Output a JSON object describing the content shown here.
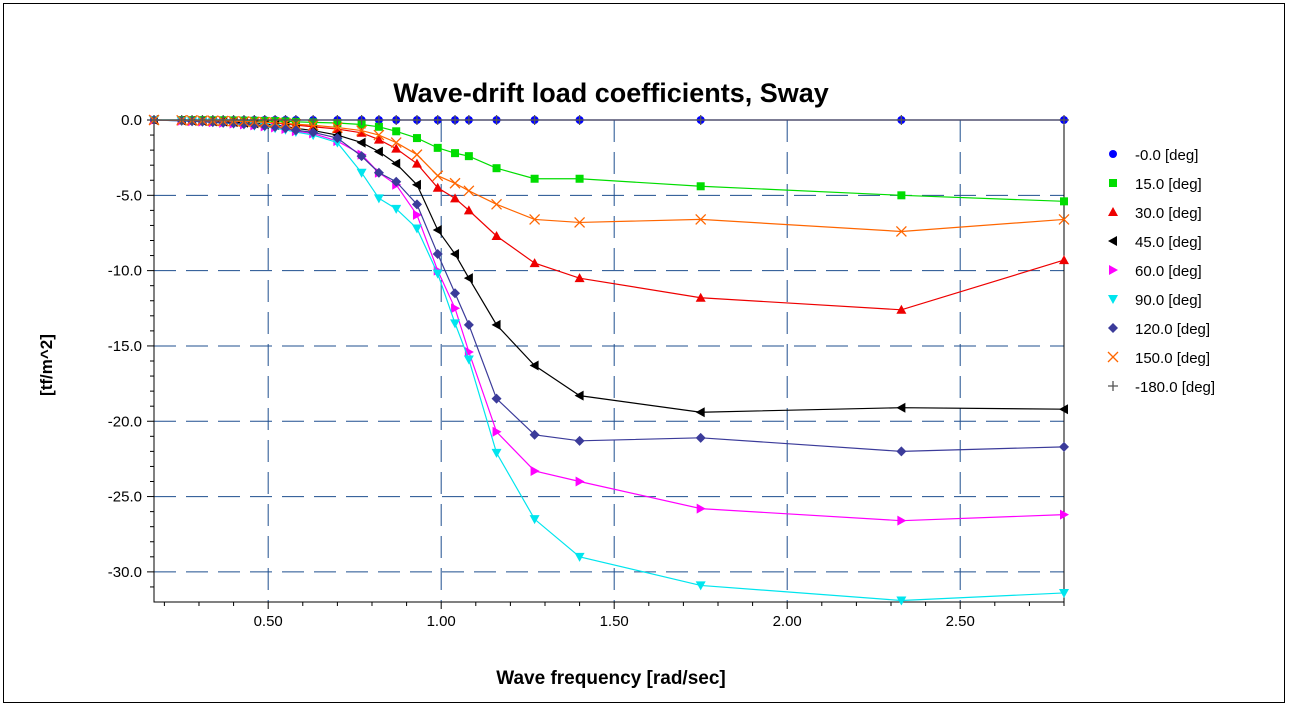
{
  "chart_data": {
    "type": "line",
    "title": "Wave-drift load coefficients, Sway",
    "xlabel": "Wave frequency [rad/sec]",
    "ylabel": "[tf/m^2]",
    "xlim": [
      0.17,
      2.8
    ],
    "ylim": [
      -32.0,
      0.0
    ],
    "xticks": [
      0.5,
      1.0,
      1.5,
      2.0,
      2.5
    ],
    "xtick_labels": [
      "0.50",
      "1.00",
      "1.50",
      "2.00",
      "2.50"
    ],
    "yticks": [
      0.0,
      -5.0,
      -10.0,
      -15.0,
      -20.0,
      -25.0,
      -30.0
    ],
    "ytick_labels": [
      "0.0",
      "-5.0",
      "-10.0",
      "-15.0",
      "-20.0",
      "-25.0",
      "-30.0"
    ],
    "grid": true,
    "legend_position": "right",
    "x": [
      0.17,
      0.25,
      0.28,
      0.31,
      0.34,
      0.37,
      0.4,
      0.43,
      0.46,
      0.49,
      0.52,
      0.55,
      0.58,
      0.63,
      0.7,
      0.77,
      0.82,
      0.87,
      0.93,
      0.99,
      1.04,
      1.08,
      1.16,
      1.27,
      1.4,
      1.75,
      2.33,
      2.8
    ],
    "series": [
      {
        "name": "-0.0 [deg]",
        "color": "#0000ff",
        "marker": "circle",
        "values": [
          0,
          0,
          0,
          0,
          0,
          0,
          0,
          0,
          0,
          0,
          0,
          0,
          0,
          0,
          0,
          0,
          0,
          0,
          0,
          0,
          0,
          0,
          0,
          0,
          0,
          0,
          0,
          0
        ]
      },
      {
        "name": "15.0 [deg]",
        "color": "#00dd00",
        "marker": "square",
        "values": [
          0,
          0,
          -0.01,
          -0.01,
          -0.02,
          -0.02,
          -0.03,
          -0.04,
          -0.05,
          -0.06,
          -0.07,
          -0.09,
          -0.12,
          -0.16,
          -0.2,
          -0.3,
          -0.45,
          -0.75,
          -1.2,
          -1.85,
          -2.2,
          -2.4,
          -3.2,
          -3.9,
          -3.9,
          -4.4,
          -5.0,
          -5.4
        ]
      },
      {
        "name": "30.0 [deg]",
        "color": "#ee0000",
        "marker": "triangle-up",
        "values": [
          0,
          -0.02,
          -0.03,
          -0.04,
          -0.05,
          -0.06,
          -0.08,
          -0.1,
          -0.13,
          -0.16,
          -0.2,
          -0.26,
          -0.34,
          -0.45,
          -0.6,
          -0.85,
          -1.3,
          -1.9,
          -2.9,
          -4.5,
          -5.2,
          -6.0,
          -7.7,
          -9.5,
          -10.5,
          -11.8,
          -12.6,
          -9.3
        ]
      },
      {
        "name": "45.0 [deg]",
        "color": "#000000",
        "marker": "triangle-left",
        "values": [
          0,
          -0.03,
          -0.05,
          -0.07,
          -0.09,
          -0.11,
          -0.14,
          -0.18,
          -0.22,
          -0.27,
          -0.34,
          -0.42,
          -0.55,
          -0.7,
          -1.0,
          -1.5,
          -2.1,
          -2.9,
          -4.3,
          -7.3,
          -8.9,
          -10.5,
          -13.6,
          -16.3,
          -18.3,
          -19.4,
          -19.1,
          -19.2
        ]
      },
      {
        "name": "60.0 [deg]",
        "color": "#ff00ff",
        "marker": "triangle-right",
        "values": [
          0,
          -0.05,
          -0.08,
          -0.11,
          -0.15,
          -0.19,
          -0.24,
          -0.3,
          -0.36,
          -0.42,
          -0.5,
          -0.6,
          -0.75,
          -0.9,
          -1.4,
          -2.3,
          -3.5,
          -4.3,
          -6.3,
          -10.0,
          -12.5,
          -15.4,
          -20.7,
          -23.3,
          -24.0,
          -25.8,
          -26.6,
          -26.2
        ]
      },
      {
        "name": "90.0 [deg]",
        "color": "#00e5ee",
        "marker": "triangle-down",
        "values": [
          0,
          -0.06,
          -0.09,
          -0.12,
          -0.16,
          -0.2,
          -0.25,
          -0.31,
          -0.38,
          -0.45,
          -0.55,
          -0.65,
          -0.8,
          -1.0,
          -1.5,
          -3.5,
          -5.2,
          -5.9,
          -7.2,
          -10.2,
          -13.5,
          -15.9,
          -22.1,
          -26.5,
          -29.0,
          -30.9,
          -31.9,
          -31.4
        ]
      },
      {
        "name": "120.0 [deg]",
        "color": "#3b3b9a",
        "marker": "diamond",
        "values": [
          0,
          -0.05,
          -0.08,
          -0.11,
          -0.14,
          -0.18,
          -0.22,
          -0.27,
          -0.33,
          -0.39,
          -0.46,
          -0.55,
          -0.68,
          -0.82,
          -1.2,
          -2.4,
          -3.5,
          -4.1,
          -5.6,
          -8.9,
          -11.5,
          -13.6,
          -18.5,
          -20.9,
          -21.3,
          -21.1,
          -22.0,
          -21.7
        ]
      },
      {
        "name": "150.0 [deg]",
        "color": "#ff6600",
        "marker": "x",
        "values": [
          0,
          -0.02,
          -0.03,
          -0.04,
          -0.05,
          -0.06,
          -0.08,
          -0.1,
          -0.12,
          -0.15,
          -0.18,
          -0.22,
          -0.28,
          -0.35,
          -0.5,
          -0.7,
          -1.0,
          -1.5,
          -2.3,
          -3.7,
          -4.2,
          -4.7,
          -5.6,
          -6.6,
          -6.8,
          -6.6,
          -7.4,
          -6.6
        ]
      },
      {
        "name": "-180.0 [deg]",
        "color": "#555555",
        "marker": "plus",
        "values": [
          0,
          0,
          0,
          0,
          0,
          0,
          0,
          0,
          0,
          0,
          0,
          0,
          0,
          0,
          0,
          0,
          0,
          0,
          0,
          0,
          0,
          0,
          0,
          0,
          0,
          0,
          0,
          0
        ]
      }
    ]
  }
}
